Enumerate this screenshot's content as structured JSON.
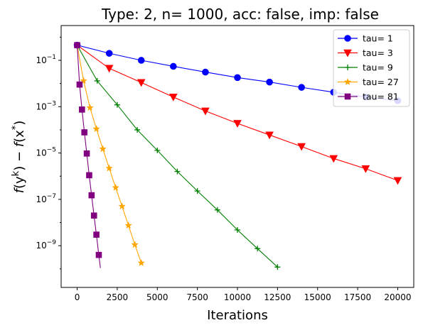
{
  "chart_data": {
    "type": "line",
    "title": "Type: 2, n= 1000, acc: false, imp: false",
    "xlabel": "Iterations",
    "ylabel": "f(y^k) − f(x^*)",
    "ylabel_parts": {
      "f1": "f",
      "open1": "(y",
      "sup1": "k",
      "close1": ") − ",
      "f2": "f",
      "open2": "(x",
      "sup2": "*",
      "close2": ")"
    },
    "xlim": [
      -1000,
      21000
    ],
    "ylim_log10": [
      -10.8,
      0.5
    ],
    "yscale": "log",
    "grid": false,
    "legend_position": "top-right",
    "x_ticks": [
      0,
      2500,
      5000,
      7500,
      10000,
      12500,
      15000,
      17500,
      20000
    ],
    "x_tick_labels": [
      "0",
      "2500",
      "5000",
      "7500",
      "10000",
      "12500",
      "15000",
      "17500",
      "20000"
    ],
    "y_tick_exponents": [
      -9,
      -7,
      -5,
      -3,
      -1
    ],
    "y_tick_base": "10",
    "series": [
      {
        "name": "tau= 1",
        "color": "#0000ff",
        "marker": "circle",
        "x": [
          0,
          2000,
          4000,
          6000,
          8000,
          10000,
          12000,
          14000,
          16000,
          18000,
          20000
        ],
        "y": [
          0.45,
          0.2,
          0.1,
          0.055,
          0.031,
          0.018,
          0.0115,
          0.0068,
          0.0042,
          0.0026,
          0.0018
        ],
        "marker_x": [
          0,
          2000,
          4000,
          6000,
          8000,
          10000,
          12000,
          14000,
          16000,
          18000,
          20000
        ],
        "marker_y": [
          0.45,
          0.2,
          0.1,
          0.055,
          0.031,
          0.018,
          0.0115,
          0.0068,
          0.0042,
          0.0026,
          0.0018
        ]
      },
      {
        "name": "tau= 3",
        "color": "#ff0000",
        "marker": "triangle-down",
        "x": [
          0,
          2000,
          4000,
          6000,
          8000,
          10000,
          12000,
          14000,
          16000,
          18000,
          20000
        ],
        "y": [
          0.45,
          0.045,
          0.011,
          0.0026,
          0.00065,
          0.00019,
          6e-05,
          1.9e-05,
          5.8e-06,
          2.1e-06,
          6.5e-07
        ],
        "marker_x": [
          4000,
          8000,
          12000,
          16000,
          20000,
          2000,
          6000,
          10000,
          14000,
          18000
        ],
        "marker_y": [
          0.011,
          0.00065,
          6e-05,
          5.8e-06,
          6.5e-07,
          0.045,
          0.0026,
          0.00019,
          1.9e-05,
          2.1e-06
        ]
      },
      {
        "name": "tau= 9",
        "color": "#008000",
        "marker": "plus",
        "x": [
          0,
          1250,
          2500,
          3750,
          5000,
          6250,
          7500,
          8750,
          10000,
          11250,
          12500
        ],
        "y": [
          0.45,
          0.013,
          0.0012,
          0.0001,
          1.3e-05,
          1.6e-06,
          2.3e-07,
          3.5e-08,
          4.8e-09,
          7.5e-10,
          1.2e-10
        ],
        "marker_x": [
          1250,
          2500,
          3750,
          5000,
          6250,
          7500,
          8750,
          10000,
          11250,
          12500
        ],
        "marker_y": [
          0.013,
          0.0012,
          0.0001,
          1.3e-05,
          1.6e-06,
          2.3e-07,
          3.5e-08,
          4.8e-09,
          7.5e-10,
          1.2e-10
        ]
      },
      {
        "name": "tau= 27",
        "color": "#ffa500",
        "marker": "star",
        "x": [
          0,
          400,
          800,
          1200,
          1600,
          2000,
          2400,
          2800,
          3200,
          3600,
          4000
        ],
        "y": [
          0.45,
          0.013,
          0.0009,
          0.00011,
          1.5e-05,
          2.2e-06,
          3.2e-07,
          5e-08,
          7.5e-09,
          1.1e-09,
          1.8e-10
        ],
        "marker_x": [
          400,
          800,
          1200,
          1600,
          2000,
          2400,
          2800,
          3200,
          3600,
          4000
        ],
        "marker_y": [
          0.013,
          0.0009,
          0.00011,
          1.5e-05,
          2.2e-06,
          3.2e-07,
          5e-08,
          7.5e-09,
          1.1e-09,
          1.8e-10
        ]
      },
      {
        "name": "tau= 81",
        "color": "#800080",
        "marker": "square",
        "x": [
          0,
          150,
          300,
          450,
          600,
          750,
          900,
          1050,
          1200,
          1350,
          1450
        ],
        "y": [
          0.45,
          0.009,
          0.00075,
          7.8e-05,
          9.5e-06,
          1.1e-06,
          1.5e-07,
          2e-08,
          3e-09,
          4e-10,
          1.1e-10
        ],
        "marker_x": [
          0,
          150,
          300,
          450,
          600,
          750,
          900,
          1050,
          1200,
          1350
        ],
        "marker_y": [
          0.45,
          0.009,
          0.00075,
          7.8e-05,
          9.5e-06,
          1.1e-06,
          1.5e-07,
          2e-08,
          3e-09,
          4e-10
        ]
      }
    ]
  }
}
